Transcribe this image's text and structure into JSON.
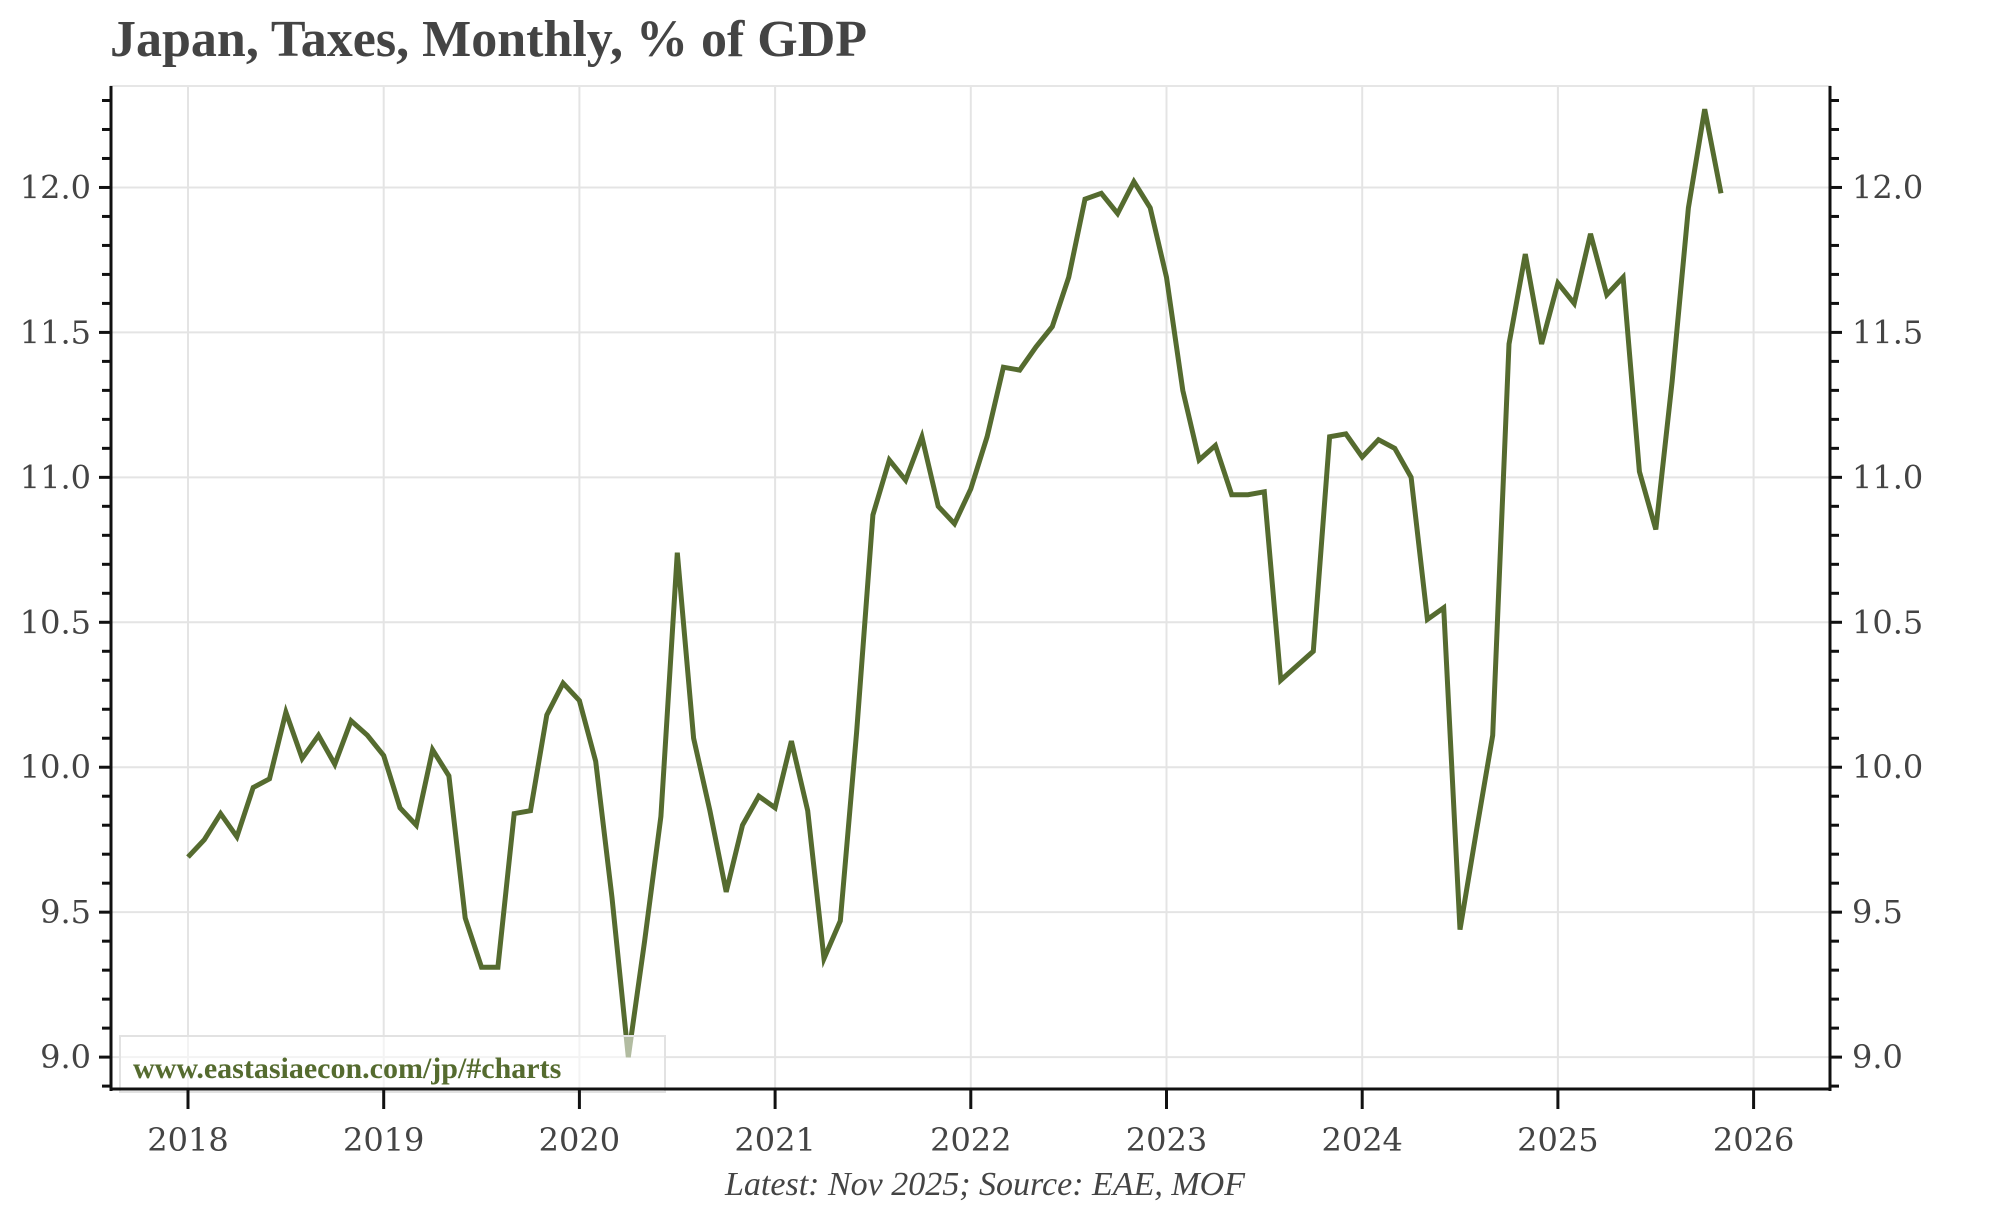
{
  "chart_data": {
    "type": "line",
    "title": "Japan, Taxes, Monthly, % of GDP",
    "xlabel": "",
    "ylabel": "",
    "footer": "Latest: Nov 2025; Source: EAE, MOF",
    "watermark": "www.eastasiaecon.com/jp/#charts",
    "line_color": "#556b2f",
    "grid": true,
    "legend": "none",
    "xlim": [
      2017.75,
      2026.4
    ],
    "ylim": [
      8.89,
      12.35
    ],
    "x_ticks": [
      2018,
      2019,
      2020,
      2021,
      2022,
      2023,
      2024,
      2025,
      2026
    ],
    "x_tick_labels": [
      "2018",
      "2019",
      "2020",
      "2021",
      "2022",
      "2023",
      "2024",
      "2025",
      "2026"
    ],
    "y_ticks": [
      9.0,
      9.5,
      10.0,
      10.5,
      11.0,
      11.5,
      12.0
    ],
    "y_tick_labels": [
      "9.0",
      "9.5",
      "10.0",
      "10.5",
      "11.0",
      "11.5",
      "12.0"
    ],
    "series": [
      {
        "name": "Taxes, % of GDP",
        "start": "2018-01",
        "frequency": "monthly",
        "values": [
          9.69,
          9.75,
          9.84,
          9.76,
          9.93,
          9.96,
          10.19,
          10.03,
          10.11,
          10.01,
          10.16,
          10.11,
          10.04,
          9.86,
          9.8,
          10.06,
          9.97,
          9.48,
          9.31,
          9.31,
          9.84,
          9.85,
          10.18,
          10.29,
          10.23,
          10.02,
          9.55,
          9.0,
          9.4,
          9.83,
          10.74,
          10.1,
          9.85,
          9.57,
          9.8,
          9.9,
          9.86,
          10.09,
          9.85,
          9.34,
          9.47,
          10.12,
          10.87,
          11.06,
          10.99,
          11.14,
          10.9,
          10.84,
          10.96,
          11.14,
          11.38,
          11.37,
          11.45,
          11.52,
          11.69,
          11.96,
          11.98,
          11.91,
          12.02,
          11.93,
          11.69,
          11.3,
          11.06,
          11.11,
          10.94,
          10.94,
          10.95,
          10.3,
          10.35,
          10.4,
          11.14,
          11.15,
          11.07,
          11.13,
          11.1,
          11.0,
          10.51,
          10.55,
          9.44,
          9.78,
          10.11,
          11.46,
          11.77,
          11.46,
          11.67,
          11.6,
          11.84,
          11.63,
          11.69,
          11.02,
          10.82,
          11.33,
          11.93,
          12.27,
          11.98
        ]
      }
    ]
  }
}
